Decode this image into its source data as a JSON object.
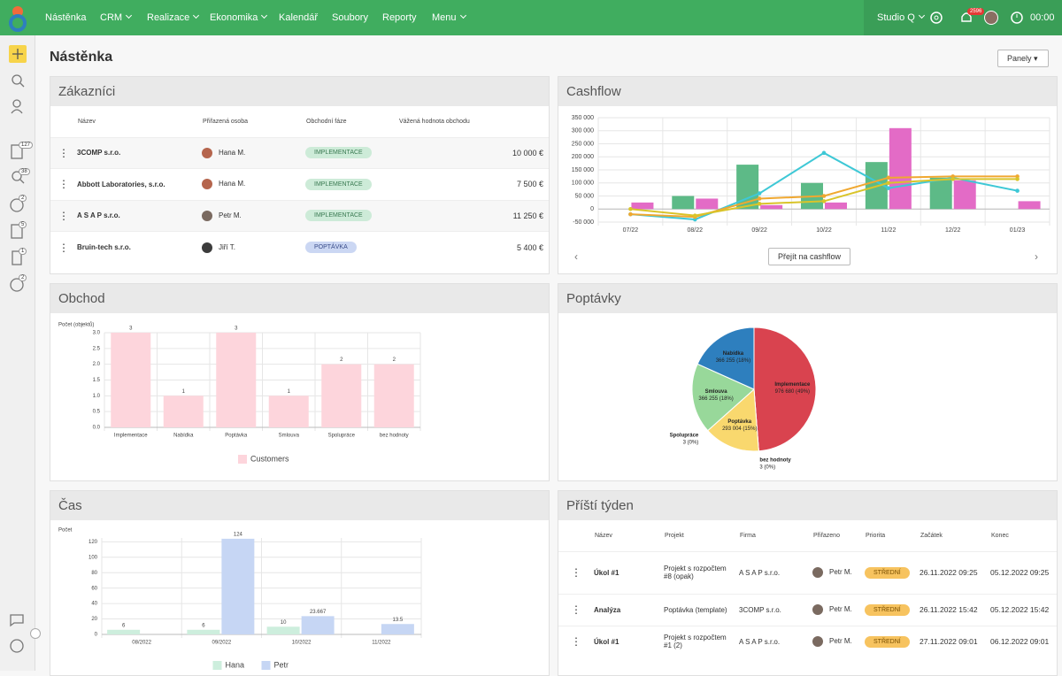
{
  "nav": {
    "items": [
      "Nástěnka",
      "CRM",
      "Realizace",
      "Ekonomika",
      "Kalendář",
      "Soubory",
      "Reporty",
      "Menu"
    ],
    "workspace": "Studio Q",
    "notifications": "2596",
    "timer": "00:00"
  },
  "sidebar": {
    "badges": [
      "127",
      "38",
      "2",
      "5",
      "1",
      "2"
    ]
  },
  "page": {
    "title": "Nástěnka",
    "button": "Panely"
  },
  "customers": {
    "title": "Zákazníci",
    "columns": [
      "Název",
      "Přiřazená osoba",
      "Obchodní fáze",
      "Vážená hodnota obchodu"
    ],
    "rows": [
      [
        "3COMP s.r.o.",
        "Hana M.",
        "IMPLEMENTACE",
        "10 000 €"
      ],
      [
        "Abbott Laboratories, s.r.o.",
        "Hana M.",
        "IMPLEMENTACE",
        "7 500 €"
      ],
      [
        "A S A P s.r.o.",
        "Petr M.",
        "IMPLEMENTACE",
        "11 250 €"
      ],
      [
        "Bruin-tech s.r.o.",
        "Jiří T.",
        "POPTÁVKA",
        "5 400 €"
      ]
    ]
  },
  "cashflow_button": "Přejít na cashflow",
  "next_week": {
    "title": "Příští týden",
    "columns": [
      "Název",
      "Projekt",
      "Firma",
      "Přiřazeno",
      "Priorita",
      "Začátek",
      "Konec"
    ],
    "rows": [
      [
        "Úkol #1",
        "Projekt s rozpočtem #8 (opak)",
        "A S A P s.r.o.",
        "Petr M.",
        "STŘEDNÍ",
        "26.11.2022 09:25",
        "05.12.2022 09:25"
      ],
      [
        "Analýza",
        "Poptávka (template)",
        "3COMP s.r.o.",
        "Petr M.",
        "STŘEDNÍ",
        "26.11.2022 15:42",
        "05.12.2022 15:42"
      ],
      [
        "Úkol #1",
        "Projekt s rozpočtem #1 (2)",
        "A S A P s.r.o.",
        "Petr M.",
        "STŘEDNÍ",
        "27.11.2022 09:01",
        "06.12.2022 09:01"
      ]
    ]
  },
  "chart_data": [
    {
      "type": "bar",
      "title": "Cashflow",
      "categories": [
        "07/22",
        "08/22",
        "09/22",
        "10/22",
        "11/22",
        "12/22",
        "01/23"
      ],
      "series": [
        {
          "type": "bar",
          "color": "#5dba87",
          "values": [
            null,
            50000,
            170000,
            100000,
            180000,
            120000,
            null
          ]
        },
        {
          "type": "bar",
          "color": "#e36bc6",
          "values": [
            25000,
            40000,
            15000,
            25000,
            310000,
            110000,
            30000
          ]
        },
        {
          "type": "line",
          "color": "#3ec8d6",
          "values": [
            -20000,
            -40000,
            60000,
            215000,
            80000,
            120000,
            70000
          ]
        },
        {
          "type": "line",
          "color": "#f0a830",
          "values": [
            -20000,
            -30000,
            40000,
            50000,
            120000,
            125000,
            125000
          ]
        },
        {
          "type": "line",
          "color": "#d9c42a",
          "values": [
            0,
            -25000,
            20000,
            30000,
            100000,
            115000,
            115000
          ]
        }
      ],
      "ylim": [
        -50000,
        350000
      ],
      "yticks": [
        {
          "value": -50000,
          "label": "-50 000"
        },
        0,
        {
          "value": 50000,
          "label": "50 000"
        },
        {
          "value": 100000,
          "label": "100 000"
        },
        {
          "value": 150000,
          "label": "150 000"
        },
        {
          "value": 200000,
          "label": "200 000"
        },
        {
          "value": 250000,
          "label": "250 000"
        },
        {
          "value": 300000,
          "label": "300 000"
        },
        {
          "value": 350000,
          "label": "350 000"
        }
      ],
      "grid": true
    },
    {
      "type": "bar",
      "title": "Obchod",
      "y_label": "Počet (objektů)",
      "categories": [
        "Implementace",
        "Nabídka",
        "Poptávka",
        "Smlouva",
        "Spolupráce",
        "bez hodnoty"
      ],
      "series": [
        {
          "name": "Customers",
          "color": "#fdd5dc",
          "values": [
            3,
            1,
            3,
            1,
            2,
            2
          ]
        }
      ],
      "ylim": [
        0,
        3
      ],
      "yticks": [
        {
          "value": 0,
          "label": "0.0"
        },
        0.5,
        {
          "value": 1,
          "label": "1.0"
        },
        1.5,
        {
          "value": 2,
          "label": "2.0"
        },
        2.5,
        {
          "value": 3,
          "label": "3.0"
        }
      ],
      "grid": true,
      "legend": "bottom"
    },
    {
      "type": "pie",
      "title": "Poptávky",
      "categories": [
        "Implementace",
        "bez hodnoty",
        "Poptávka",
        "Spolupráce",
        "Smlouva",
        "Nabídka"
      ],
      "values": [
        976680,
        3,
        293004,
        3,
        366255,
        366255
      ],
      "value_labels": [
        "976 680 (49%)",
        "3 (0%)",
        "293 004 (15%)",
        "3 (0%)",
        "366 255 (18%)",
        "366 255 (18%)"
      ],
      "colors": [
        "#d9434f",
        "#8e5fc4",
        "#f9d86e",
        "#e88c3a",
        "#98d89a",
        "#2e7fbe"
      ]
    },
    {
      "type": "bar",
      "title": "Čas",
      "y_label": "Počet",
      "categories": [
        "08/2022",
        "09/2022",
        "10/2022",
        "11/2022"
      ],
      "series": [
        {
          "name": "Hana",
          "color": "#cdeedd",
          "values": [
            6,
            6,
            10,
            null
          ]
        },
        {
          "name": "Petr",
          "color": "#c6d6f4",
          "values": [
            null,
            124,
            23.667,
            13.5
          ]
        }
      ],
      "ylim": [
        0,
        125
      ],
      "yticks": [
        0,
        20,
        40,
        60,
        80,
        100,
        120
      ],
      "grid": true,
      "legend": "bottom"
    }
  ]
}
